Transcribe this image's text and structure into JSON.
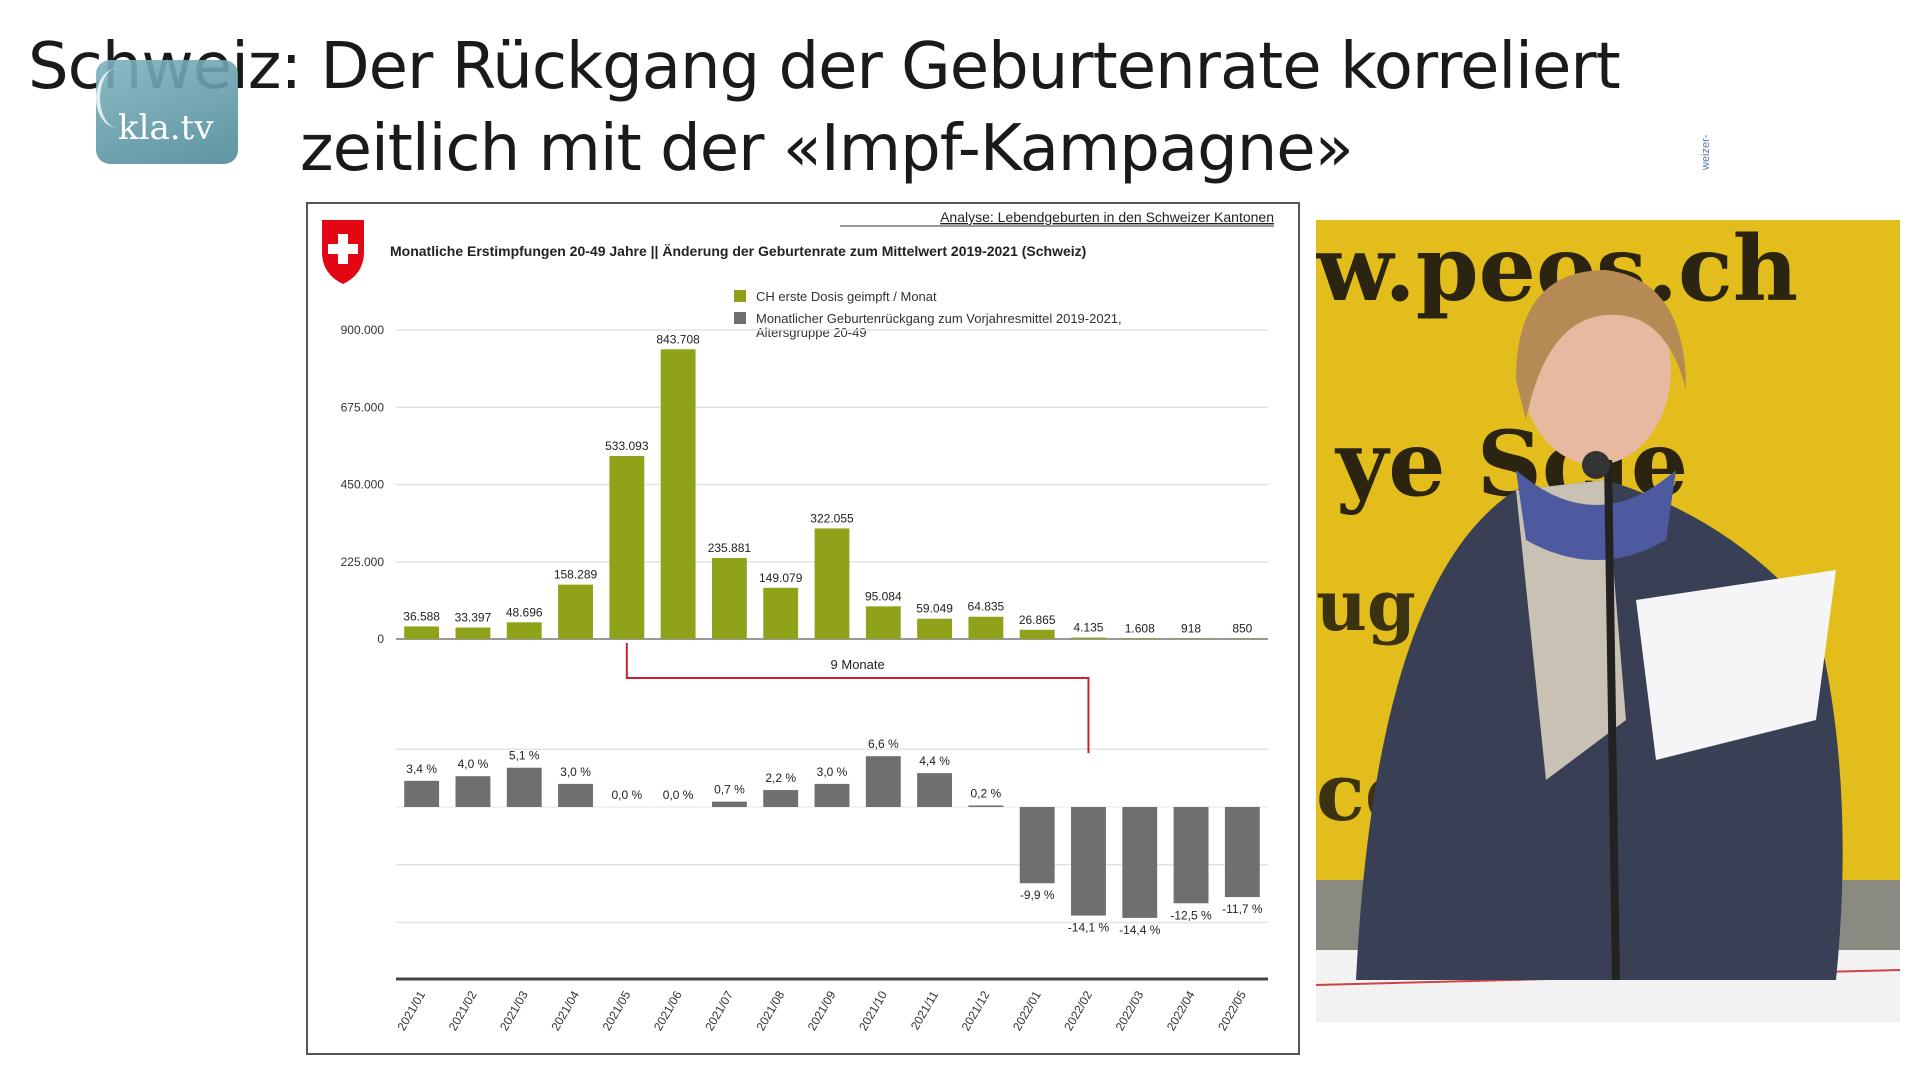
{
  "slide": {
    "title_line1": "Schweiz: Der Rückgang der Geburtenrate korreliert",
    "title_line2": "zeitlich mit der «Impf-Kampagne»",
    "logo_text": "kla.tv",
    "side_text": "weizer-"
  },
  "photo": {
    "banner_text_1": "w.peos.ch",
    "banner_text_2": "ye    Scie",
    "banner_text_3": "ug        en",
    "banner_text_4": "ce          nc",
    "description_colors": {
      "banner": "#e9c21a",
      "jacket": "#3b4256"
    }
  },
  "chart_data": {
    "type": "bar",
    "source_link": "Analyse: Lebendgeburten in den Schweizer Kantonen",
    "title": "Monatliche Erstimpfungen 20-49 Jahre || Änderung der Geburtenrate zum Mittelwert 2019-2021 (Schweiz)",
    "categories": [
      "2021/01",
      "2021/02",
      "2021/03",
      "2021/04",
      "2021/05",
      "2021/06",
      "2021/07",
      "2021/08",
      "2021/09",
      "2021/10",
      "2021/11",
      "2021/12",
      "2022/01",
      "2022/02",
      "2022/03",
      "2022/04",
      "2022/05"
    ],
    "series": [
      {
        "name": "CH erste Dosis geimpft / Monat",
        "color": "#8fa21a",
        "values": [
          36588,
          33397,
          48696,
          158289,
          533093,
          843708,
          235881,
          149079,
          322055,
          95084,
          59049,
          64835,
          26865,
          4135,
          1608,
          918,
          850
        ],
        "labels": [
          "36.588",
          "33.397",
          "48.696",
          "158.289",
          "533.093",
          "843.708",
          "235.881",
          "149.079",
          "322.055",
          "95.084",
          "59.049",
          "64.835",
          "26.865",
          "4.135",
          "1.608",
          "918",
          "850"
        ]
      },
      {
        "name": "Monatlicher Geburtenrückgang zum Vorjahresmittel 2019-2021, Altersgruppe 20-49",
        "color": "#6d706e",
        "values": [
          3.4,
          4.0,
          5.1,
          3.0,
          0.0,
          0.0,
          0.7,
          2.2,
          3.0,
          6.6,
          4.4,
          0.2,
          -9.9,
          -14.1,
          -14.4,
          -12.5,
          -11.7
        ],
        "labels": [
          "3,4 %",
          "4,0 %",
          "5,1 %",
          "3,0 %",
          "0,0 %",
          "0,0 %",
          "0,7 %",
          "2,2 %",
          "3,0 %",
          "6,6 %",
          "4,4 %",
          "0,2 %",
          "-9,9 %",
          "-14,1 %",
          "-14,4 %",
          "-12,5 %",
          "-11,7 %"
        ]
      }
    ],
    "y_ticks": [
      "0",
      "225.000",
      "450.000",
      "675.000",
      "900.000"
    ],
    "y_tick_values": [
      0,
      225000,
      450000,
      675000,
      900000
    ],
    "ylim": [
      0,
      900000
    ],
    "ylim_lower": [
      -22.5,
      7.5
    ],
    "annotation": {
      "text": "9 Monate",
      "from": "2021/05",
      "to": "2022/02",
      "color": "#d21f2a"
    },
    "legend_placement": "top-center",
    "grid": true
  }
}
